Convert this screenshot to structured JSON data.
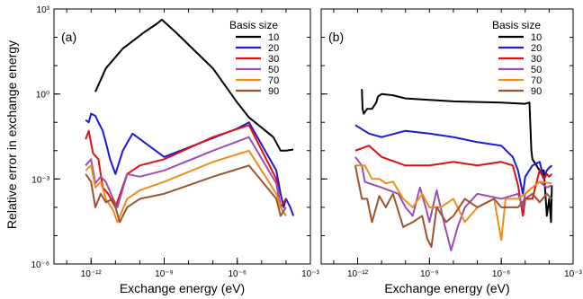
{
  "figure": {
    "ylabel": "Relative error in exchange energy"
  },
  "chart_data": [
    {
      "type": "line",
      "panel_label": "(a)",
      "xlabel": "Exchange energy (eV)",
      "ylabel": "Relative error in exchange energy",
      "x_scale": "log",
      "y_scale": "log",
      "xlim": [
        3e-14,
        0.001
      ],
      "ylim": [
        1e-06,
        1000
      ],
      "x_ticks": [
        {
          "value": 1e-12,
          "label": "10⁻¹²"
        },
        {
          "value": 1e-09,
          "label": "10⁻⁹"
        },
        {
          "value": 1e-06,
          "label": "10⁻⁶"
        },
        {
          "value": 0.001,
          "label": "10⁻³"
        }
      ],
      "y_ticks": [
        {
          "value": 1e-06,
          "label": "10⁻⁶"
        },
        {
          "value": 0.001,
          "label": "10⁻³"
        },
        {
          "value": 1,
          "label": "10⁰"
        },
        {
          "value": 1000,
          "label": "10³"
        }
      ],
      "legend_title": "Basis size",
      "legend_position": "top-right",
      "grid": false,
      "series": [
        {
          "name": "10",
          "color": "#000000",
          "points": [
            [
              1.5e-12,
              1.2
            ],
            [
              4e-12,
              8
            ],
            [
              2e-11,
              40
            ],
            [
              1.5e-10,
              150
            ],
            [
              5e-10,
              300
            ],
            [
              8e-10,
              420
            ],
            [
              3e-09,
              150
            ],
            [
              1e-07,
              8
            ],
            [
              1e-06,
              0.5
            ],
            [
              3e-06,
              0.15
            ],
            [
              3e-05,
              0.03
            ],
            [
              6e-05,
              0.01
            ],
            [
              0.0001,
              0.01
            ],
            [
              0.0002,
              0.011
            ]
          ]
        },
        {
          "name": "20",
          "color": "#1a1adb",
          "points": [
            [
              6e-13,
              0.12
            ],
            [
              8e-13,
              0.1
            ],
            [
              1e-12,
              0.2
            ],
            [
              1.5e-12,
              0.17
            ],
            [
              2e-12,
              0.1
            ],
            [
              3e-12,
              0.05
            ],
            [
              4e-12,
              0.02
            ],
            [
              6e-12,
              0.005
            ],
            [
              1e-11,
              0.0015
            ],
            [
              2e-11,
              0.01
            ],
            [
              5e-11,
              0.04
            ],
            [
              1e-09,
              0.006
            ],
            [
              1e-06,
              0.06
            ],
            [
              3e-06,
              0.1
            ],
            [
              4e-05,
              0.002
            ],
            [
              6e-05,
              0.0003
            ],
            [
              8e-05,
              0.0001
            ],
            [
              0.0001,
              0.0002
            ],
            [
              0.00015,
              0.0001
            ],
            [
              0.0002,
              5e-05
            ]
          ]
        },
        {
          "name": "30",
          "color": "#e01010",
          "points": [
            [
              6e-13,
              0.025
            ],
            [
              8e-13,
              0.05
            ],
            [
              1.2e-12,
              0.008
            ],
            [
              2e-12,
              0.005
            ],
            [
              3e-12,
              0.0005
            ],
            [
              5e-12,
              0.0003
            ],
            [
              1e-11,
              0.0001
            ],
            [
              3e-11,
              0.0015
            ],
            [
              1e-10,
              0.003
            ],
            [
              1e-09,
              0.005
            ],
            [
              1e-07,
              0.03
            ],
            [
              3e-06,
              0.08
            ],
            [
              4e-05,
              0.001
            ],
            [
              6e-05,
              0.0001
            ],
            [
              0.0001,
              0.0002
            ]
          ]
        },
        {
          "name": "50",
          "color": "#9a4fb0",
          "points": [
            [
              6e-13,
              0.003
            ],
            [
              1e-12,
              0.005
            ],
            [
              1.5e-12,
              0.0007
            ],
            [
              2.5e-12,
              0.0012
            ],
            [
              4e-12,
              0.0008
            ],
            [
              8e-12,
              0.0002
            ],
            [
              1.2e-11,
              0.0001
            ],
            [
              3e-11,
              0.0015
            ],
            [
              1e-10,
              0.0012
            ],
            [
              1e-09,
              0.002
            ],
            [
              1e-07,
              0.01
            ],
            [
              3e-06,
              0.03
            ],
            [
              4e-05,
              0.0007
            ],
            [
              6e-05,
              0.0001
            ],
            [
              0.0001,
              5e-05
            ]
          ]
        },
        {
          "name": "70",
          "color": "#f08c1a",
          "points": [
            [
              6e-13,
              0.002
            ],
            [
              1e-12,
              0.003
            ],
            [
              1.5e-12,
              0.0005
            ],
            [
              2.5e-12,
              0.0008
            ],
            [
              4e-12,
              0.0002
            ],
            [
              8e-12,
              8e-05
            ],
            [
              1.2e-11,
              3e-05
            ],
            [
              3e-11,
              0.0002
            ],
            [
              1e-10,
              0.0004
            ],
            [
              1e-09,
              0.0008
            ],
            [
              1e-07,
              0.004
            ],
            [
              3e-06,
              0.01
            ],
            [
              4e-05,
              0.0003
            ],
            [
              6e-05,
              0.0001
            ],
            [
              0.0001,
              5e-05
            ]
          ]
        },
        {
          "name": "90",
          "color": "#a0522d",
          "points": [
            [
              6e-13,
              0.0015
            ],
            [
              1e-12,
              0.0008
            ],
            [
              1.5e-12,
              0.0001
            ],
            [
              2.5e-12,
              0.0003
            ],
            [
              4e-12,
              0.00015
            ],
            [
              8e-12,
              0.0002
            ],
            [
              1.5e-11,
              3e-05
            ],
            [
              3e-11,
              0.0001
            ],
            [
              1e-10,
              0.0002
            ],
            [
              1e-09,
              0.0003
            ],
            [
              1e-07,
              0.0012
            ],
            [
              3e-06,
              0.003
            ],
            [
              4e-05,
              0.0002
            ],
            [
              6e-05,
              5e-05
            ],
            [
              0.0001,
              0.0001
            ]
          ]
        }
      ]
    },
    {
      "type": "line",
      "panel_label": "(b)",
      "xlabel": "Exchange energy (eV)",
      "x_scale": "log",
      "y_scale": "log",
      "xlim": [
        3e-14,
        0.001
      ],
      "ylim": [
        1e-06,
        1000
      ],
      "x_ticks": [
        {
          "value": 1e-12,
          "label": "10⁻¹²"
        },
        {
          "value": 1e-09,
          "label": "10⁻⁹"
        },
        {
          "value": 1e-06,
          "label": "10⁻⁶"
        },
        {
          "value": 0.001,
          "label": "10⁻³"
        }
      ],
      "legend_title": "Basis size",
      "legend_position": "top-right",
      "grid": false,
      "series": [
        {
          "name": "10",
          "color": "#000000",
          "points": [
            [
              1.5e-12,
              1.5
            ],
            [
              1.6e-12,
              0.3
            ],
            [
              1.8e-12,
              0.2
            ],
            [
              2.5e-12,
              0.3
            ],
            [
              4e-12,
              0.3
            ],
            [
              6e-12,
              0.5
            ],
            [
              7e-12,
              0.8
            ],
            [
              1e-11,
              1.0
            ],
            [
              3e-11,
              0.9
            ],
            [
              1e-10,
              0.7
            ],
            [
              1e-08,
              0.55
            ],
            [
              1e-06,
              0.5
            ],
            [
              1e-05,
              0.45
            ],
            [
              1.5e-05,
              0.5
            ],
            [
              1.8e-05,
              0.01
            ],
            [
              2e-05,
              0.005
            ],
            [
              4e-05,
              0.002
            ],
            [
              6e-05,
              0.002
            ],
            [
              8e-05,
              5e-05
            ],
            [
              0.0001,
              0.0002
            ],
            [
              0.00012,
              3e-05
            ],
            [
              0.00013,
              0.0006
            ]
          ]
        },
        {
          "name": "20",
          "color": "#1a1adb",
          "points": [
            [
              8e-13,
              0.08
            ],
            [
              3e-12,
              0.04
            ],
            [
              1e-11,
              0.03
            ],
            [
              1e-10,
              0.05
            ],
            [
              1e-09,
              0.04
            ],
            [
              1e-08,
              0.03
            ],
            [
              1e-07,
              0.02
            ],
            [
              1e-06,
              0.015
            ],
            [
              3e-06,
              0.006
            ],
            [
              5e-06,
              0.002
            ],
            [
              8e-06,
              0.0003
            ],
            [
              1e-05,
              0.0012
            ],
            [
              2e-05,
              0.003
            ],
            [
              4e-05,
              0.004
            ],
            [
              6e-05,
              0.001
            ],
            [
              8e-05,
              0.002
            ],
            [
              0.0001,
              0.0025
            ],
            [
              0.00013,
              0.003
            ]
          ]
        },
        {
          "name": "30",
          "color": "#e01010",
          "points": [
            [
              8e-13,
              0.01
            ],
            [
              3e-12,
              0.015
            ],
            [
              1e-11,
              0.006
            ],
            [
              1e-10,
              0.003
            ],
            [
              1e-09,
              0.003
            ],
            [
              1e-08,
              0.004
            ],
            [
              1e-07,
              0.003
            ],
            [
              1e-06,
              0.004
            ],
            [
              3e-06,
              0.003
            ],
            [
              5e-06,
              0.0006
            ],
            [
              8e-06,
              5e-05
            ],
            [
              1e-05,
              0.0002
            ],
            [
              2e-05,
              0.0002
            ],
            [
              4e-05,
              0.002
            ],
            [
              6e-05,
              0.001
            ],
            [
              8e-05,
              0.0015
            ],
            [
              0.0001,
              0.0012
            ],
            [
              0.00013,
              0.0015
            ]
          ]
        },
        {
          "name": "50",
          "color": "#9a4fb0",
          "points": [
            [
              8e-13,
              0.006
            ],
            [
              1.5e-12,
              0.003
            ],
            [
              2e-12,
              0.0008
            ],
            [
              3e-12,
              0.0007
            ],
            [
              1e-11,
              0.0005
            ],
            [
              5e-11,
              0.0003
            ],
            [
              1e-10,
              0.0001
            ],
            [
              2e-10,
              5e-05
            ],
            [
              4e-10,
              0.0005
            ],
            [
              7e-10,
              0.0001
            ],
            [
              1e-09,
              3e-05
            ],
            [
              2e-09,
              0.0004
            ],
            [
              4e-09,
              3e-05
            ],
            [
              8e-09,
              3e-06
            ],
            [
              1.5e-08,
              2e-05
            ],
            [
              3e-08,
              0.0001
            ],
            [
              1e-07,
              0.0003
            ],
            [
              1e-06,
              0.0002
            ],
            [
              5e-06,
              0.0003
            ],
            [
              8e-06,
              0.0001
            ],
            [
              1e-05,
              0.0003
            ],
            [
              2e-05,
              0.0005
            ],
            [
              4e-05,
              0.0008
            ],
            [
              8e-05,
              0.0005
            ],
            [
              0.00013,
              0.0006
            ]
          ]
        },
        {
          "name": "70",
          "color": "#f08c1a",
          "points": [
            [
              8e-13,
              0.003
            ],
            [
              2e-12,
              0.003
            ],
            [
              4e-12,
              0.001
            ],
            [
              8e-12,
              0.001
            ],
            [
              1.5e-11,
              0.0007
            ],
            [
              3e-11,
              0.0008
            ],
            [
              8e-11,
              0.0002
            ],
            [
              2e-10,
              0.0001
            ],
            [
              5e-10,
              0.0003
            ],
            [
              1e-09,
              0.0001
            ],
            [
              3e-09,
              0.0001
            ],
            [
              1e-08,
              0.0002
            ],
            [
              3e-08,
              3e-05
            ],
            [
              1e-07,
              0.0001
            ],
            [
              5e-07,
              0.0002
            ],
            [
              1e-06,
              7e-06
            ],
            [
              1.5e-06,
              0.0002
            ],
            [
              5e-06,
              0.0002
            ],
            [
              1e-05,
              0.0003
            ],
            [
              2e-05,
              0.0005
            ],
            [
              4e-05,
              0.0008
            ],
            [
              0.00013,
              0.0007
            ]
          ]
        },
        {
          "name": "90",
          "color": "#a0522d",
          "points": [
            [
              8e-13,
              0.003
            ],
            [
              1.5e-12,
              0.0002
            ],
            [
              2.5e-12,
              0.0002
            ],
            [
              4e-12,
              3e-05
            ],
            [
              8e-12,
              0.00025
            ],
            [
              1.5e-11,
              0.0001
            ],
            [
              3e-11,
              0.0003
            ],
            [
              8e-11,
              2e-05
            ],
            [
              2e-10,
              3e-05
            ],
            [
              5e-10,
              5e-05
            ],
            [
              8e-10,
              8e-06
            ],
            [
              1.2e-09,
              4e-06
            ],
            [
              2e-09,
              0.0001
            ],
            [
              5e-09,
              3e-05
            ],
            [
              1e-08,
              5e-05
            ],
            [
              3e-08,
              0.0002
            ],
            [
              1e-07,
              0.0001
            ],
            [
              5e-07,
              0.0002
            ],
            [
              1e-06,
              0.0001
            ],
            [
              5e-06,
              0.0001
            ],
            [
              1e-05,
              0.0002
            ],
            [
              2e-05,
              0.0003
            ],
            [
              4e-05,
              0.00015
            ],
            [
              8e-05,
              0.0003
            ],
            [
              0.00013,
              0.0002
            ]
          ]
        }
      ]
    }
  ]
}
